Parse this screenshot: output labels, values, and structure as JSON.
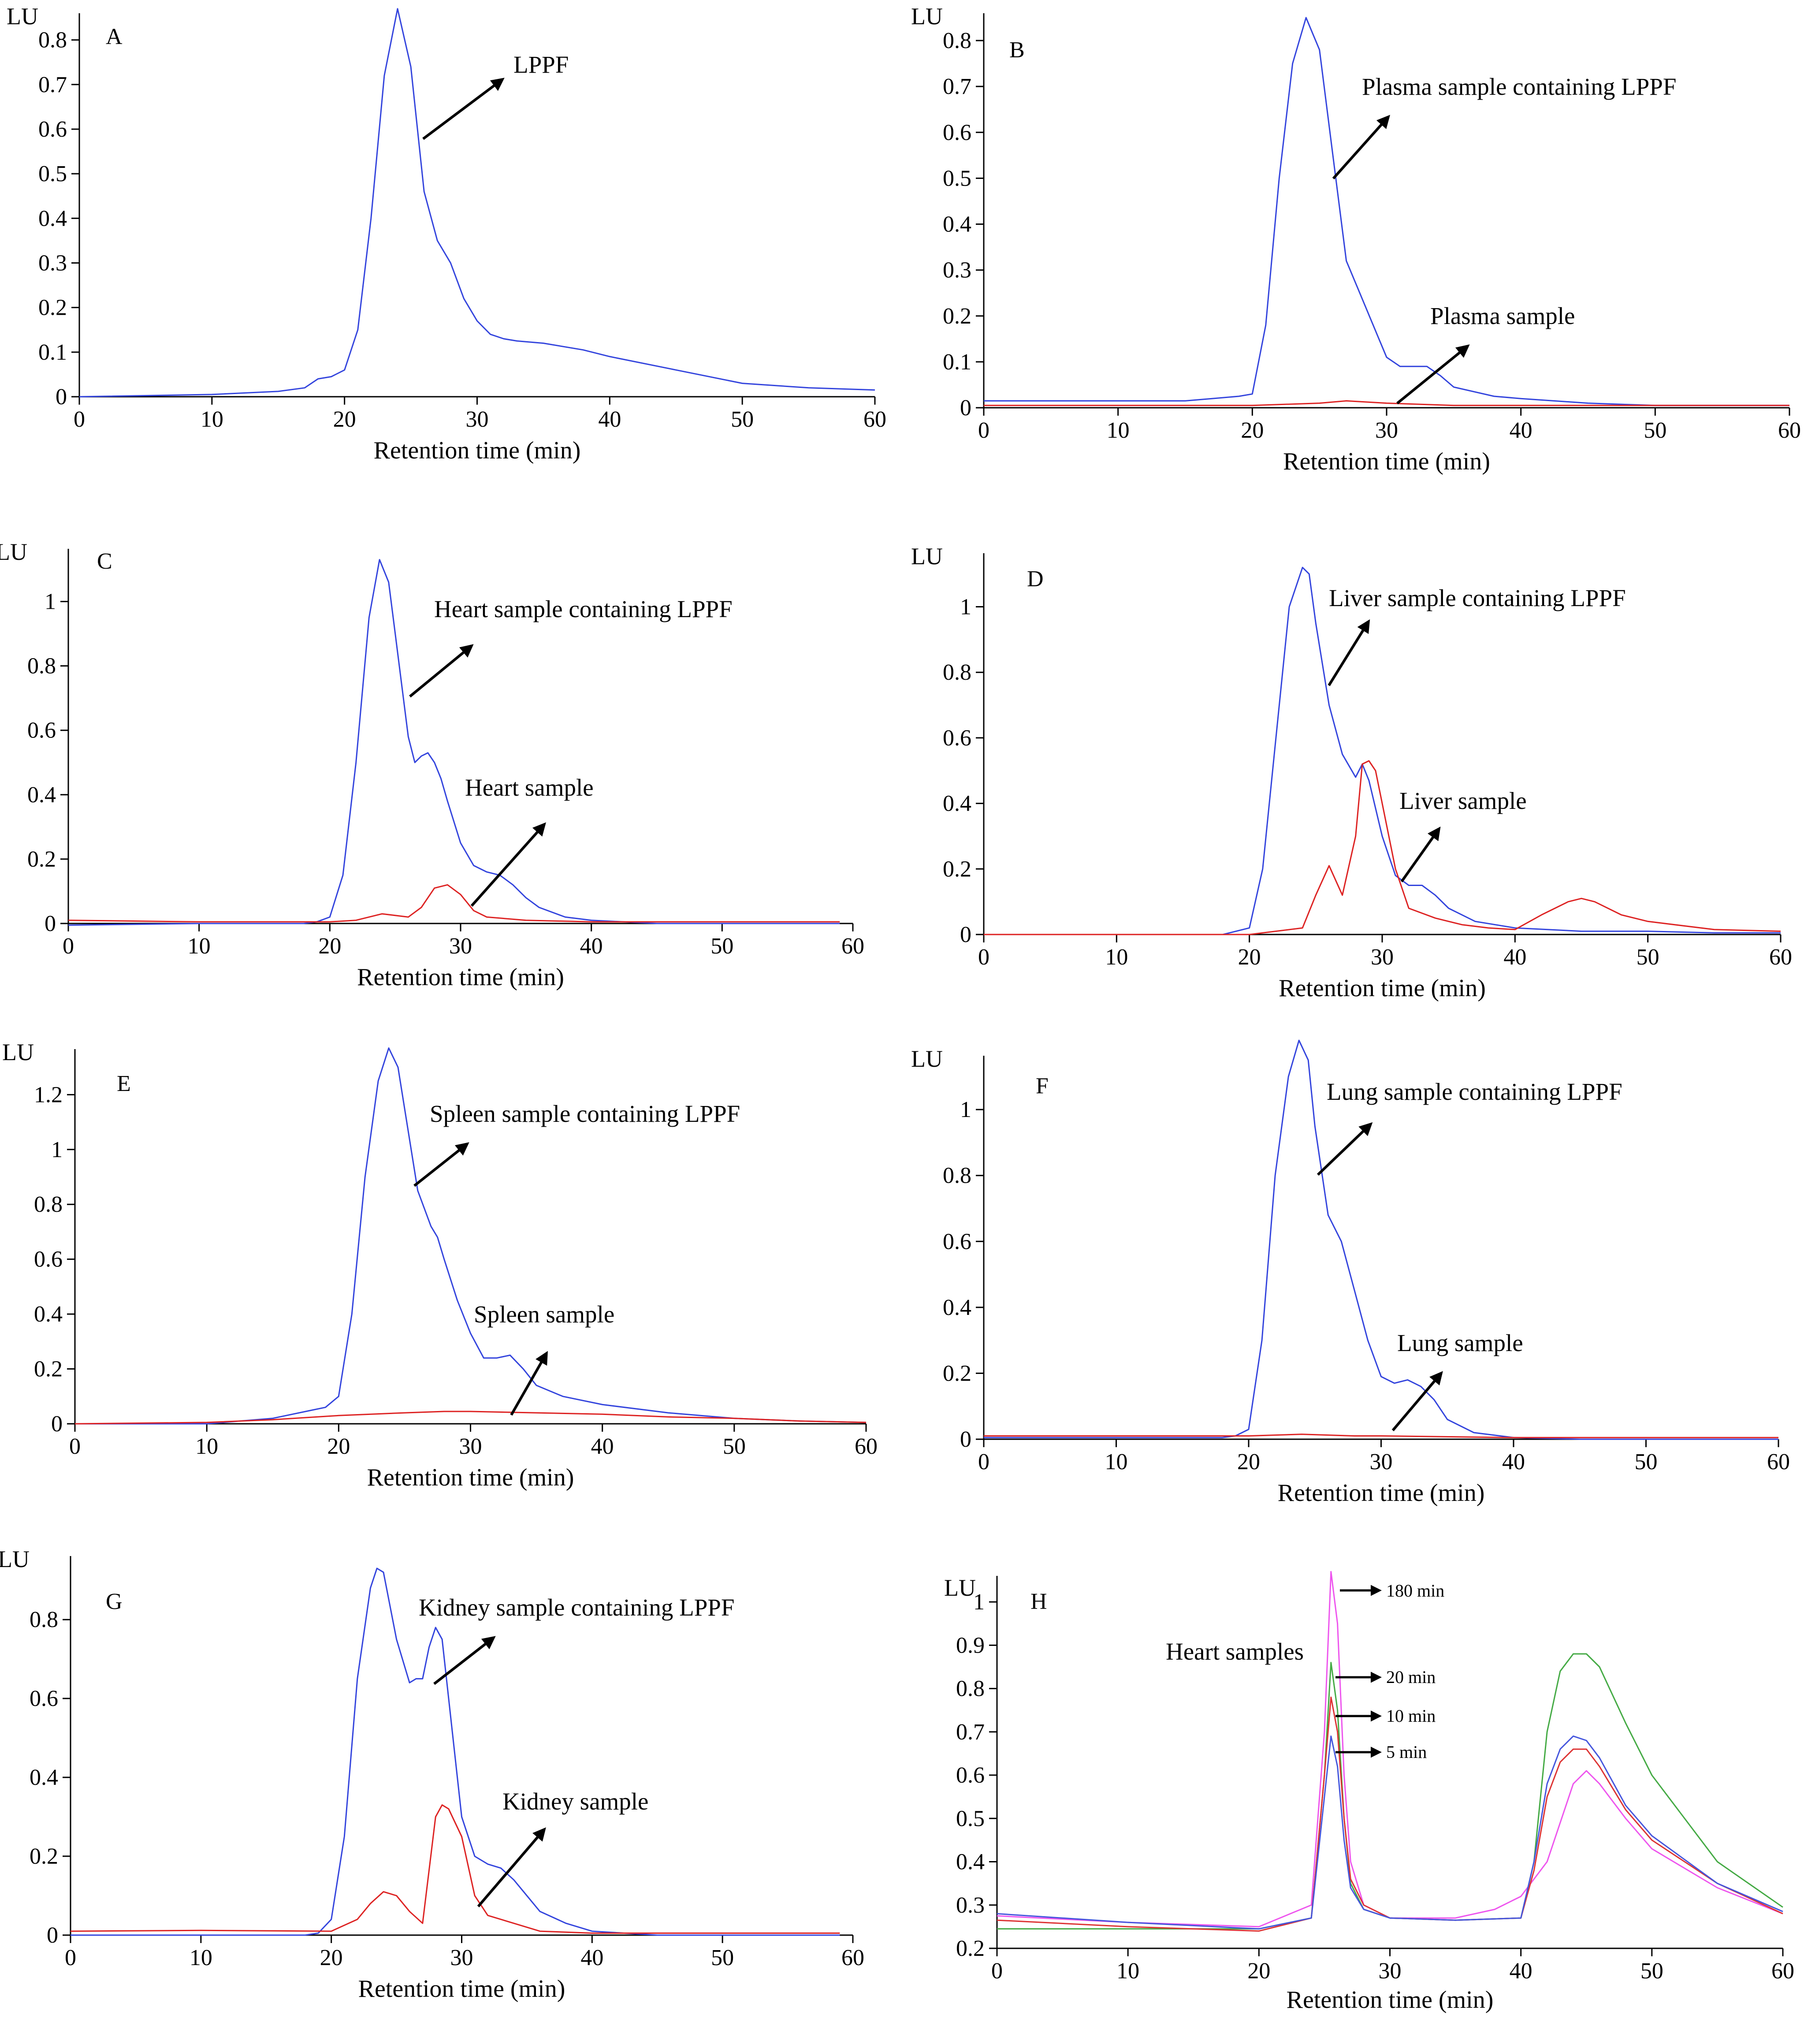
{
  "chart_data": [
    {
      "panel": "A",
      "type": "line",
      "ylabel": "LU",
      "xlabel": "Retention time (min)",
      "xlim": [
        0,
        60
      ],
      "ylim": [
        0,
        0.85
      ],
      "xticks": [
        0,
        10,
        20,
        30,
        40,
        50,
        60
      ],
      "yticks": [
        0,
        0.1,
        0.2,
        0.3,
        0.4,
        0.5,
        0.6,
        0.7,
        0.8
      ],
      "series": [
        {
          "color": "#3344dd",
          "x": [
            0,
            10,
            15,
            17,
            18,
            19,
            20,
            21,
            22,
            23,
            24,
            25,
            26,
            27,
            28,
            29,
            30,
            31,
            32,
            33,
            35,
            38,
            40,
            45,
            50,
            55,
            60
          ],
          "y": [
            0.0,
            0.005,
            0.012,
            0.02,
            0.04,
            0.045,
            0.06,
            0.15,
            0.4,
            0.72,
            0.87,
            0.74,
            0.46,
            0.35,
            0.3,
            0.22,
            0.17,
            0.14,
            0.13,
            0.125,
            0.12,
            0.105,
            0.09,
            0.06,
            0.03,
            0.02,
            0.015
          ]
        }
      ],
      "annotations": [
        {
          "text": "LPPF"
        }
      ]
    },
    {
      "panel": "B",
      "type": "line",
      "ylabel": "LU",
      "xlabel": "Retention time (min)",
      "xlim": [
        0,
        60
      ],
      "ylim": [
        0,
        0.85
      ],
      "xticks": [
        0,
        10,
        20,
        30,
        40,
        50,
        60
      ],
      "yticks": [
        0,
        0.1,
        0.2,
        0.3,
        0.4,
        0.5,
        0.6,
        0.7,
        0.8
      ],
      "series": [
        {
          "color": "#3344dd",
          "x": [
            0,
            10,
            15,
            17,
            19,
            20,
            21,
            22,
            23,
            24,
            25,
            26,
            27,
            28,
            29,
            30,
            31,
            32,
            33,
            34,
            35,
            38,
            40,
            45,
            50,
            55,
            60
          ],
          "y": [
            0.015,
            0.015,
            0.015,
            0.02,
            0.025,
            0.03,
            0.18,
            0.5,
            0.75,
            0.85,
            0.78,
            0.55,
            0.32,
            0.25,
            0.18,
            0.11,
            0.09,
            0.09,
            0.09,
            0.07,
            0.045,
            0.025,
            0.02,
            0.01,
            0.005,
            0.005,
            0.005
          ]
        },
        {
          "color": "#dd2222",
          "x": [
            0,
            20,
            25,
            27,
            30,
            35,
            40,
            60
          ],
          "y": [
            0.005,
            0.005,
            0.01,
            0.015,
            0.01,
            0.005,
            0.005,
            0.005
          ]
        }
      ],
      "annotations": [
        {
          "text": "Plasma sample containing LPPF"
        },
        {
          "text": "Plasma sample"
        }
      ]
    },
    {
      "panel": "C",
      "type": "line",
      "ylabel": "LU",
      "xlabel": "Retention time (min)",
      "xlim": [
        0,
        60
      ],
      "ylim": [
        0,
        1.15
      ],
      "xticks": [
        0,
        10,
        20,
        30,
        40,
        50,
        60
      ],
      "yticks": [
        0,
        0.2,
        0.4,
        0.6,
        0.8,
        1
      ],
      "series": [
        {
          "color": "#3344dd",
          "x": [
            0,
            10,
            18,
            19,
            20,
            21,
            22,
            23,
            23.8,
            24.5,
            25,
            26,
            26.5,
            27,
            27.5,
            28,
            28.5,
            29,
            30,
            31,
            32,
            33,
            34,
            35,
            36,
            38,
            40,
            45,
            50,
            59
          ],
          "y": [
            -0.005,
            0.0,
            0.0,
            0.005,
            0.02,
            0.15,
            0.5,
            0.95,
            1.13,
            1.06,
            0.9,
            0.58,
            0.5,
            0.52,
            0.53,
            0.5,
            0.45,
            0.38,
            0.25,
            0.18,
            0.16,
            0.15,
            0.12,
            0.08,
            0.05,
            0.02,
            0.01,
            0.0,
            0.0,
            0.0
          ]
        },
        {
          "color": "#dd2222",
          "x": [
            0,
            10,
            20,
            22,
            24,
            26,
            27,
            28,
            29,
            30,
            31,
            32,
            35,
            40,
            50,
            59
          ],
          "y": [
            0.01,
            0.005,
            0.005,
            0.01,
            0.03,
            0.02,
            0.05,
            0.11,
            0.12,
            0.09,
            0.04,
            0.02,
            0.01,
            0.005,
            0.005,
            0.005
          ]
        }
      ],
      "annotations": [
        {
          "text": "Heart sample containing LPPF"
        },
        {
          "text": "Heart sample"
        }
      ]
    },
    {
      "panel": "D",
      "type": "line",
      "ylabel": "LU",
      "xlabel": "Retention time (min)",
      "xlim": [
        0,
        60
      ],
      "ylim": [
        0,
        1.15
      ],
      "xticks": [
        0,
        10,
        20,
        30,
        40,
        50,
        60
      ],
      "yticks": [
        0,
        0.2,
        0.4,
        0.6,
        0.8,
        1
      ],
      "series": [
        {
          "color": "#3344dd",
          "x": [
            0,
            10,
            18,
            20,
            21,
            22,
            23,
            24,
            24.5,
            25,
            26,
            27,
            28,
            28.5,
            29,
            30,
            31,
            32,
            33,
            34,
            35,
            37,
            40,
            45,
            50,
            55,
            60
          ],
          "y": [
            0.0,
            0.0,
            0.0,
            0.02,
            0.2,
            0.6,
            1.0,
            1.12,
            1.1,
            0.95,
            0.7,
            0.55,
            0.48,
            0.52,
            0.47,
            0.3,
            0.18,
            0.15,
            0.15,
            0.12,
            0.08,
            0.04,
            0.02,
            0.01,
            0.01,
            0.005,
            0.005
          ]
        },
        {
          "color": "#dd2222",
          "x": [
            0,
            20,
            24,
            25,
            26,
            27,
            28,
            28.5,
            29,
            29.5,
            30,
            31,
            32,
            34,
            36,
            38,
            40,
            42,
            44,
            45,
            46,
            48,
            50,
            55,
            60
          ],
          "y": [
            0.0,
            0.0,
            0.02,
            0.12,
            0.21,
            0.12,
            0.3,
            0.52,
            0.53,
            0.5,
            0.4,
            0.2,
            0.08,
            0.05,
            0.03,
            0.02,
            0.015,
            0.06,
            0.1,
            0.11,
            0.1,
            0.06,
            0.04,
            0.015,
            0.01
          ]
        }
      ],
      "annotations": [
        {
          "text": "Liver sample containing LPPF"
        },
        {
          "text": "Liver sample"
        }
      ]
    },
    {
      "panel": "E",
      "type": "line",
      "ylabel": "LU",
      "xlabel": "Retention time (min)",
      "xlim": [
        0,
        60
      ],
      "ylim": [
        0,
        1.35
      ],
      "xticks": [
        0,
        10,
        20,
        30,
        40,
        50,
        60
      ],
      "yticks": [
        0,
        0.2,
        0.4,
        0.6,
        0.8,
        1,
        1.2
      ],
      "series": [
        {
          "color": "#3344dd",
          "x": [
            0,
            10,
            15,
            18,
            19,
            20,
            21,
            22,
            23,
            23.8,
            24.5,
            25,
            26,
            27,
            27.5,
            28,
            29,
            30,
            31,
            32,
            33,
            34,
            35,
            37,
            40,
            45,
            50,
            55,
            60
          ],
          "y": [
            0.0,
            0.0,
            0.02,
            0.05,
            0.06,
            0.1,
            0.4,
            0.9,
            1.25,
            1.37,
            1.3,
            1.15,
            0.85,
            0.72,
            0.68,
            0.6,
            0.45,
            0.33,
            0.24,
            0.24,
            0.25,
            0.2,
            0.14,
            0.1,
            0.07,
            0.04,
            0.02,
            0.01,
            0.005
          ]
        },
        {
          "color": "#dd2222",
          "x": [
            0,
            10,
            15,
            20,
            25,
            28,
            30,
            35,
            40,
            45,
            50,
            55,
            60
          ],
          "y": [
            0.0,
            0.005,
            0.015,
            0.03,
            0.04,
            0.045,
            0.045,
            0.04,
            0.035,
            0.025,
            0.02,
            0.01,
            0.005
          ]
        }
      ],
      "annotations": [
        {
          "text": "Spleen sample containing LPPF"
        },
        {
          "text": "Spleen sample"
        }
      ]
    },
    {
      "panel": "F",
      "type": "line",
      "ylabel": "LU",
      "xlabel": "Retention time (min)",
      "xlim": [
        0,
        60
      ],
      "ylim": [
        0,
        1.15
      ],
      "xticks": [
        0,
        10,
        20,
        30,
        40,
        50,
        60
      ],
      "yticks": [
        0,
        0.2,
        0.4,
        0.6,
        0.8,
        1
      ],
      "series": [
        {
          "color": "#3344dd",
          "x": [
            0,
            10,
            18,
            19,
            20,
            21,
            22,
            23,
            23.8,
            24.5,
            25,
            26,
            27,
            28,
            29,
            30,
            31,
            32,
            33,
            34,
            35,
            37,
            40,
            45,
            50,
            55,
            60
          ],
          "y": [
            0.005,
            0.005,
            0.005,
            0.01,
            0.03,
            0.3,
            0.8,
            1.1,
            1.21,
            1.15,
            0.95,
            0.68,
            0.6,
            0.45,
            0.3,
            0.19,
            0.17,
            0.18,
            0.16,
            0.12,
            0.06,
            0.02,
            0.005,
            0.0,
            0.0,
            0.0,
            0.0
          ]
        },
        {
          "color": "#dd2222",
          "x": [
            0,
            20,
            24,
            28,
            30,
            40,
            60
          ],
          "y": [
            0.01,
            0.01,
            0.015,
            0.01,
            0.01,
            0.005,
            0.005
          ]
        }
      ],
      "annotations": [
        {
          "text": "Lung sample containing LPPF"
        },
        {
          "text": "Lung sample"
        }
      ]
    },
    {
      "panel": "G",
      "type": "line",
      "ylabel": "LU",
      "xlabel": "Retention time (min)",
      "xlim": [
        0,
        60
      ],
      "ylim": [
        0,
        0.95
      ],
      "xticks": [
        0,
        10,
        20,
        30,
        40,
        50,
        60
      ],
      "yticks": [
        0,
        0.2,
        0.4,
        0.6,
        0.8
      ],
      "series": [
        {
          "color": "#3344dd",
          "x": [
            0,
            10,
            18,
            19,
            20,
            21,
            22,
            23,
            23.5,
            24,
            25,
            26,
            26.5,
            27,
            27.5,
            28,
            28.5,
            29,
            30,
            31,
            32,
            33,
            34,
            35,
            36,
            38,
            40,
            45,
            50,
            59
          ],
          "y": [
            0.0,
            0.0,
            0.0,
            0.005,
            0.04,
            0.25,
            0.65,
            0.88,
            0.93,
            0.92,
            0.75,
            0.64,
            0.65,
            0.65,
            0.73,
            0.78,
            0.75,
            0.6,
            0.3,
            0.2,
            0.18,
            0.17,
            0.14,
            0.1,
            0.06,
            0.03,
            0.01,
            0.0,
            0.0,
            0.0
          ]
        },
        {
          "color": "#dd2222",
          "x": [
            0,
            10,
            20,
            22,
            23,
            24,
            25,
            26,
            27,
            28,
            28.5,
            29,
            30,
            31,
            32,
            34,
            36,
            40,
            50,
            59
          ],
          "y": [
            0.01,
            0.012,
            0.01,
            0.04,
            0.08,
            0.11,
            0.1,
            0.06,
            0.03,
            0.3,
            0.33,
            0.32,
            0.25,
            0.1,
            0.05,
            0.03,
            0.01,
            0.005,
            0.005,
            0.005
          ]
        }
      ],
      "annotations": [
        {
          "text": "Kidney sample containing LPPF"
        },
        {
          "text": "Kidney sample"
        }
      ]
    },
    {
      "panel": "H",
      "type": "line",
      "ylabel": "LU",
      "xlabel": "Retention time (min)",
      "xlim": [
        0,
        60
      ],
      "ylim": [
        0.2,
        1.05
      ],
      "xticks": [
        0,
        10,
        20,
        30,
        40,
        50,
        60
      ],
      "yticks": [
        0.2,
        0.3,
        0.4,
        0.5,
        0.6,
        0.7,
        0.8,
        0.9,
        1
      ],
      "series": [
        {
          "color": "#ee55ee",
          "x": [
            0,
            10,
            20,
            24,
            25,
            25.5,
            26,
            26.5,
            27,
            28,
            30,
            35,
            38,
            40,
            42,
            44,
            45,
            46,
            48,
            50,
            55,
            60
          ],
          "y": [
            0.275,
            0.26,
            0.25,
            0.3,
            0.7,
            1.07,
            0.95,
            0.6,
            0.4,
            0.3,
            0.27,
            0.27,
            0.29,
            0.32,
            0.4,
            0.58,
            0.61,
            0.58,
            0.5,
            0.43,
            0.34,
            0.28
          ]
        },
        {
          "color": "#44aa44",
          "x": [
            0,
            10,
            20,
            24,
            25,
            25.5,
            26,
            26.5,
            27,
            28,
            30,
            35,
            40,
            41,
            42,
            43,
            44,
            45,
            46,
            48,
            50,
            55,
            60
          ],
          "y": [
            0.245,
            0.245,
            0.245,
            0.27,
            0.6,
            0.86,
            0.75,
            0.5,
            0.35,
            0.29,
            0.27,
            0.265,
            0.27,
            0.4,
            0.7,
            0.84,
            0.88,
            0.88,
            0.85,
            0.72,
            0.6,
            0.4,
            0.295
          ]
        },
        {
          "color": "#dd3333",
          "x": [
            0,
            10,
            20,
            24,
            25,
            25.5,
            26,
            26.5,
            27,
            28,
            30,
            35,
            40,
            41,
            42,
            43,
            44,
            45,
            46,
            48,
            50,
            55,
            60
          ],
          "y": [
            0.265,
            0.25,
            0.24,
            0.27,
            0.6,
            0.78,
            0.7,
            0.5,
            0.36,
            0.3,
            0.27,
            0.265,
            0.27,
            0.38,
            0.55,
            0.63,
            0.66,
            0.66,
            0.62,
            0.52,
            0.45,
            0.35,
            0.28
          ]
        },
        {
          "color": "#4455dd",
          "x": [
            0,
            10,
            20,
            24,
            25,
            25.5,
            26,
            26.5,
            27,
            28,
            30,
            35,
            40,
            41,
            42,
            43,
            44,
            45,
            46,
            48,
            50,
            55,
            60
          ],
          "y": [
            0.28,
            0.26,
            0.245,
            0.27,
            0.55,
            0.69,
            0.62,
            0.45,
            0.34,
            0.29,
            0.27,
            0.265,
            0.27,
            0.4,
            0.58,
            0.66,
            0.69,
            0.68,
            0.64,
            0.53,
            0.46,
            0.35,
            0.285
          ]
        }
      ],
      "annotations": [
        {
          "text": "Heart samples"
        },
        {
          "text": "180 min"
        },
        {
          "text": "20 min"
        },
        {
          "text": "10 min"
        },
        {
          "text": "5 min"
        }
      ]
    }
  ]
}
